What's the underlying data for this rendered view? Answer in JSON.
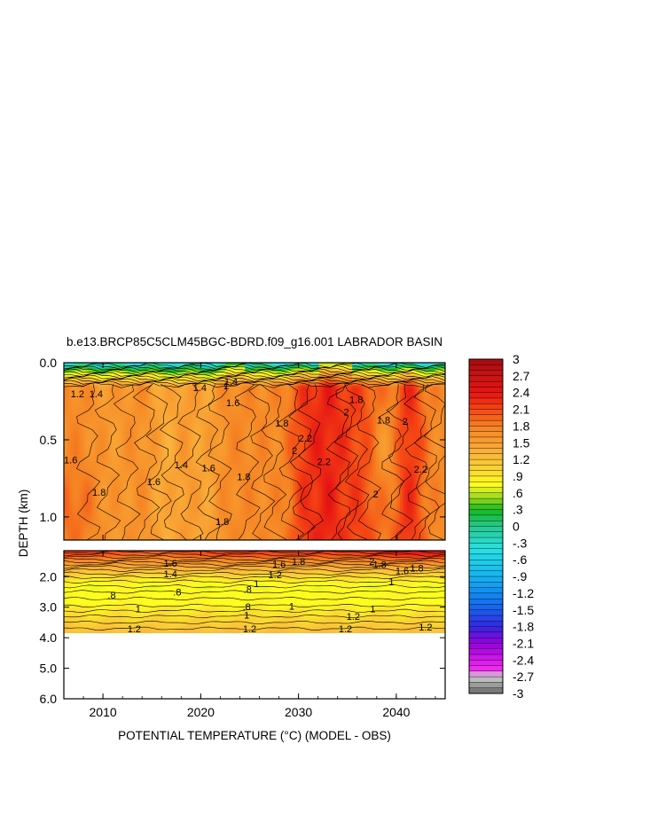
{
  "chart_data": {
    "type": "heatmap",
    "title": "b.e13.BRCP85C5CLM45BGC-BDRD.f09_g16.001 LABRADOR BASIN",
    "xlabel": "POTENTIAL TEMPERATURE (°C) (MODEL - OBS)",
    "ylabel": "DEPTH (km)",
    "xlim": [
      2006,
      2045
    ],
    "x_ticks": [
      2010,
      2020,
      2030,
      2040
    ],
    "upper_panel": {
      "ylim": [
        0.0,
        1.15
      ],
      "y_ticks": [
        {
          "value": 0.0,
          "label": "0.0"
        },
        {
          "value": 0.5,
          "label": "0.5"
        },
        {
          "value": 1.0,
          "label": "1.0"
        }
      ]
    },
    "lower_panel": {
      "ylim": [
        1.15,
        6.0
      ],
      "data_bottom": 3.85,
      "y_ticks": [
        {
          "value": 2.0,
          "label": "2.0"
        },
        {
          "value": 3.0,
          "label": "3.0"
        },
        {
          "value": 4.0,
          "label": "4.0"
        },
        {
          "value": 5.0,
          "label": "5.0"
        },
        {
          "value": 6.0,
          "label": "6.0"
        }
      ]
    },
    "colorbar": {
      "min": -3,
      "max": 3,
      "labels": [
        "3",
        "2.7",
        "2.4",
        "2.1",
        "1.8",
        "1.5",
        "1.2",
        ".9",
        ".6",
        ".3",
        "0",
        "-.3",
        "-.6",
        "-.9",
        "-1.2",
        "-1.5",
        "-1.8",
        "-2.1",
        "-2.4",
        "-2.7",
        "-3"
      ]
    },
    "contour_labels": [
      {
        "text": "1.6",
        "year": 2006.7,
        "depth": 0.63
      },
      {
        "text": "1.8",
        "year": 2009.6,
        "depth": 0.84
      },
      {
        "text": "1.6",
        "year": 2015.2,
        "depth": 0.77
      },
      {
        "text": "1.4",
        "year": 2018.0,
        "depth": 0.66
      },
      {
        "text": "1.6",
        "year": 2020.8,
        "depth": 0.68
      },
      {
        "text": "1.8",
        "year": 2022.2,
        "depth": 1.03
      },
      {
        "text": "1.8",
        "year": 2024.4,
        "depth": 0.74
      },
      {
        "text": "1.8",
        "year": 2028.3,
        "depth": 0.39
      },
      {
        "text": "2",
        "year": 2029.6,
        "depth": 0.57
      },
      {
        "text": "2.2",
        "year": 2030.7,
        "depth": 0.49
      },
      {
        "text": "2.2",
        "year": 2032.6,
        "depth": 0.64
      },
      {
        "text": "2",
        "year": 2034.9,
        "depth": 0.32
      },
      {
        "text": "1.8",
        "year": 2035.9,
        "depth": 0.24
      },
      {
        "text": "1.8",
        "year": 2038.7,
        "depth": 0.37
      },
      {
        "text": "2",
        "year": 2040.9,
        "depth": 0.38
      },
      {
        "text": "2",
        "year": 2037.9,
        "depth": 0.85
      },
      {
        "text": "2.2",
        "year": 2042.5,
        "depth": 0.69
      },
      {
        "text": "1.6",
        "year": 2023.3,
        "depth": 0.26
      },
      {
        "text": "1.4",
        "year": 2019.9,
        "depth": 0.16
      },
      {
        "text": "1.2",
        "year": 2007.4,
        "depth": 0.2
      },
      {
        "text": "1.4",
        "year": 2009.3,
        "depth": 0.2
      },
      {
        "text": "1",
        "year": 2022.6,
        "depth": 0.15
      },
      {
        "text": "1.4",
        "year": 2023.1,
        "depth": 0.12
      },
      {
        "text": "1.6",
        "year": 2016.9,
        "depth": 1.55
      },
      {
        "text": "1.4",
        "year": 2016.9,
        "depth": 1.9
      },
      {
        "text": "1.6",
        "year": 2028.0,
        "depth": 1.58
      },
      {
        "text": "1.8",
        "year": 2030.0,
        "depth": 1.5
      },
      {
        "text": "1.2",
        "year": 2027.6,
        "depth": 1.93
      },
      {
        "text": "2",
        "year": 2037.5,
        "depth": 1.5
      },
      {
        "text": "1.6",
        "year": 2040.6,
        "depth": 1.8
      },
      {
        "text": "1.8",
        "year": 2042.1,
        "depth": 1.72
      },
      {
        "text": "1",
        "year": 2039.5,
        "depth": 2.15
      },
      {
        "text": "1",
        "year": 2025.7,
        "depth": 2.22
      },
      {
        "text": ".8",
        "year": 2017.6,
        "depth": 2.5
      },
      {
        "text": ".8",
        "year": 2024.8,
        "depth": 2.42
      },
      {
        "text": ".8",
        "year": 2010.9,
        "depth": 2.6
      },
      {
        "text": ".8",
        "year": 2024.7,
        "depth": 2.98
      },
      {
        "text": "1",
        "year": 2029.3,
        "depth": 2.97
      },
      {
        "text": "1",
        "year": 2013.6,
        "depth": 3.05
      },
      {
        "text": "1",
        "year": 2024.7,
        "depth": 3.25
      },
      {
        "text": "1",
        "year": 2037.6,
        "depth": 3.05
      },
      {
        "text": "1.2",
        "year": 2035.6,
        "depth": 3.3
      },
      {
        "text": "1.2",
        "year": 2025.0,
        "depth": 3.7
      },
      {
        "text": "1.2",
        "year": 2034.8,
        "depth": 3.7
      },
      {
        "text": "1.2",
        "year": 2043.0,
        "depth": 3.65
      },
      {
        "text": "1.2",
        "year": 2013.2,
        "depth": 3.7
      },
      {
        "text": "1.8",
        "year": 2038.3,
        "depth": 1.6
      }
    ],
    "grid": false,
    "legend": "colorbar-right"
  }
}
